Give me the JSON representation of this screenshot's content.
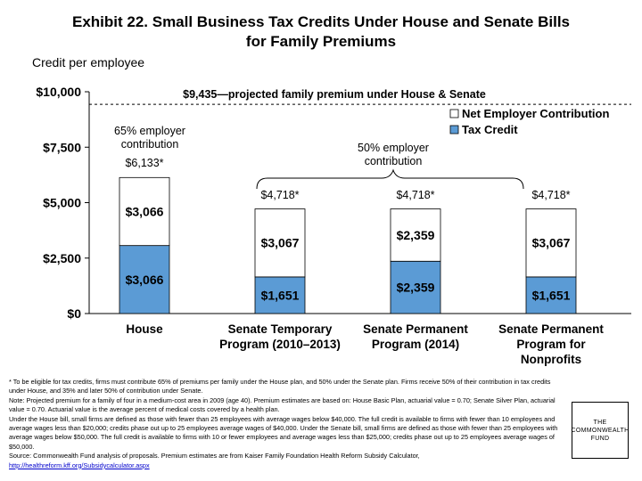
{
  "title_line1": "Exhibit 22. Small Business Tax Credits Under House and Senate Bills",
  "title_line2": "for Family Premiums",
  "subtitle": "Credit per employee",
  "chart_data": {
    "type": "bar",
    "stacked": true,
    "categories": [
      [
        "House"
      ],
      [
        "Senate Temporary",
        "Program (2010–2013)"
      ],
      [
        "Senate Permanent",
        "Program (2014)"
      ],
      [
        "Senate Permanent",
        "Program for",
        "Nonprofits"
      ]
    ],
    "series": [
      {
        "name": "Tax Credit",
        "color": "#5b9bd5",
        "values": [
          3066,
          1651,
          2359,
          1651
        ],
        "labels": [
          "$3,066",
          "$1,651",
          "$2,359",
          "$1,651"
        ]
      },
      {
        "name": "Net Employer Contribution",
        "color": "#ffffff",
        "values": [
          3066,
          3067,
          2359,
          3067
        ],
        "labels": [
          "$3,066",
          "$3,067",
          "$2,359",
          "$3,067"
        ]
      }
    ],
    "totals": [
      "$6,133*",
      "$4,718*",
      "$4,718*",
      "$4,718*"
    ],
    "ylim": [
      0,
      10000
    ],
    "yticks": [
      {
        "value": 0,
        "label": "$0"
      },
      {
        "value": 2500,
        "label": "$2,500"
      },
      {
        "value": 5000,
        "label": "$5,000"
      },
      {
        "value": 7500,
        "label": "$7,500"
      },
      {
        "value": 10000,
        "label": "$10,000"
      }
    ],
    "reference_line": {
      "value": 9435,
      "label": "$9,435—projected family premium under House & Senate",
      "style": "dashed"
    },
    "annotations": [
      {
        "lines": [
          "65% employer",
          "contribution"
        ]
      },
      {
        "lines": [
          "50% employer",
          "contribution"
        ]
      }
    ],
    "legend_position": "top-right",
    "grid": false
  },
  "footnotes": [
    "* To be eligible for tax credits, firms must contribute 65% of premiums per family under the House plan, and 50% under the Senate plan. Firms receive 50% of their contribution in tax credits under House, and 35% and later 50% of contribution under Senate.",
    "Note: Projected premium for a family of four in a medium-cost area in 2009 (age 40). Premium estimates are based on: House Basic Plan, actuarial value = 0.70; Senate Silver Plan, actuarial value = 0.70. Actuarial value is the average percent of medical costs covered by a health plan.",
    "Under the House bill, small firms are defined as those with fewer than 25 employees with average wages below $40,000. The full credit is available to firms with fewer than 10 employees and average wages less than $20,000; credits phase out up to 25 employees average wages of $40,000. Under the Senate bill, small firms are defined as those with fewer than 25 employees with average wages below $50,000. The full credit is available to firms with 10 or fewer employees and average wages less than $25,000; credits phase out up to 25 employees average wages of $50,000.",
    "Source: Commonwealth Fund analysis of proposals. Premium estimates are from Kaiser Family Foundation Health Reform Subsidy Calculator,"
  ],
  "source_link": "http://healthreform.kff.org/Subsidycalculator.aspx",
  "logo": {
    "line1": "THE",
    "line2": "COMMONWEALTH",
    "line3": "FUND"
  }
}
